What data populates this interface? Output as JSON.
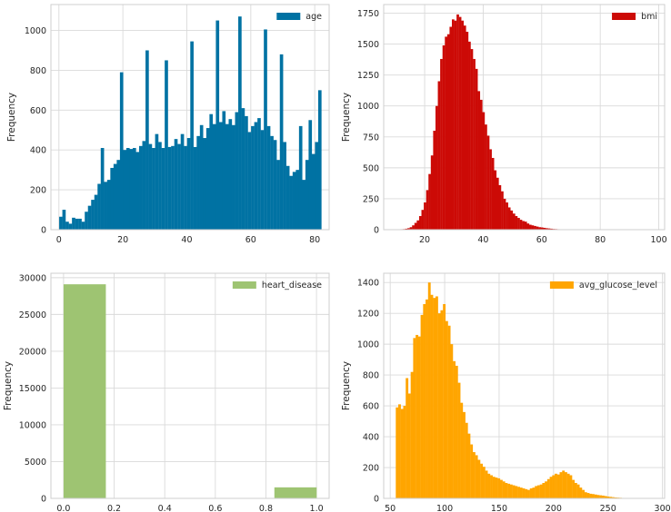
{
  "chart_data": [
    {
      "type": "histogram",
      "legend": "age",
      "legend_position": "upper-right",
      "ylabel": "Frequency",
      "color": "#0072a3",
      "grid": true,
      "xlim": [
        -2.5,
        84.5
      ],
      "ylim": [
        0,
        1130
      ],
      "xticks": [
        0,
        20,
        40,
        60,
        80
      ],
      "yticks": [
        0,
        200,
        400,
        600,
        800,
        1000
      ],
      "bin_start": 0.08,
      "bin_width": 1.0,
      "values": [
        65,
        100,
        40,
        30,
        60,
        55,
        55,
        40,
        90,
        120,
        150,
        175,
        230,
        410,
        240,
        250,
        310,
        330,
        350,
        790,
        400,
        410,
        405,
        410,
        390,
        420,
        445,
        900,
        430,
        410,
        480,
        440,
        410,
        850,
        415,
        420,
        455,
        430,
        480,
        420,
        460,
        945,
        415,
        470,
        525,
        460,
        510,
        580,
        530,
        1050,
        540,
        595,
        530,
        555,
        525,
        590,
        1070,
        610,
        570,
        490,
        520,
        540,
        560,
        500,
        1005,
        520,
        470,
        450,
        350,
        880,
        440,
        320,
        270,
        290,
        300,
        520,
        250,
        350,
        550,
        380,
        440,
        700
      ]
    },
    {
      "type": "histogram",
      "legend": "bmi",
      "legend_position": "upper-right",
      "ylabel": "Frequency",
      "color": "#cc0a06",
      "grid": true,
      "xlim": [
        6,
        102
      ],
      "ylim": [
        0,
        1820
      ],
      "xticks": [
        20,
        40,
        60,
        80,
        100
      ],
      "yticks": [
        0,
        250,
        500,
        750,
        1000,
        1250,
        1500,
        1750
      ],
      "bin_start": 10.1,
      "bin_width": 0.8,
      "values": [
        3,
        2,
        4,
        5,
        8,
        12,
        20,
        35,
        55,
        75,
        110,
        160,
        220,
        320,
        450,
        600,
        800,
        1000,
        1200,
        1380,
        1490,
        1560,
        1580,
        1640,
        1700,
        1690,
        1740,
        1720,
        1690,
        1650,
        1600,
        1520,
        1460,
        1380,
        1300,
        1120,
        1050,
        950,
        850,
        760,
        650,
        580,
        480,
        420,
        360,
        310,
        250,
        220,
        180,
        155,
        130,
        110,
        95,
        80,
        70,
        65,
        50,
        40,
        35,
        30,
        25,
        20,
        18,
        15,
        12,
        10,
        8,
        6,
        5,
        4,
        3,
        3,
        2,
        2,
        1,
        1,
        1,
        1,
        0,
        0,
        1,
        0,
        0,
        0,
        0,
        0,
        0,
        0,
        0,
        0,
        0,
        1,
        0,
        0,
        0,
        0,
        0,
        0,
        0,
        0,
        0,
        0,
        0,
        0,
        0,
        0,
        1
      ]
    },
    {
      "type": "histogram",
      "legend": "heart_disease",
      "legend_position": "upper-right",
      "ylabel": "Frequency",
      "color": "#9ec472",
      "grid": true,
      "xlim": [
        -0.05,
        1.05
      ],
      "ylim": [
        0,
        30600
      ],
      "xticks": [
        0.0,
        0.2,
        0.4,
        0.6,
        0.8,
        1.0
      ],
      "xtick_labels": [
        "0.0",
        "0.2",
        "0.4",
        "0.6",
        "0.8",
        "1.0"
      ],
      "yticks": [
        0,
        5000,
        10000,
        15000,
        20000,
        25000,
        30000
      ],
      "bin_start": 0.0,
      "bin_width": 0.1667,
      "values": [
        29100,
        0,
        0,
        0,
        0,
        1500
      ]
    },
    {
      "type": "histogram",
      "legend": "avg_glucose_level",
      "legend_position": "upper-right",
      "ylabel": "Frequency",
      "color": "#ffa500",
      "grid": true,
      "xlim": [
        44,
        302
      ],
      "ylim": [
        0,
        1460
      ],
      "xticks": [
        50,
        100,
        150,
        200,
        250,
        300
      ],
      "yticks": [
        0,
        200,
        400,
        600,
        800,
        1000,
        1200,
        1400
      ],
      "bin_start": 55.1,
      "bin_width": 2.28,
      "values": [
        590,
        610,
        580,
        600,
        780,
        680,
        820,
        1040,
        1060,
        1050,
        1190,
        1260,
        1290,
        1400,
        1320,
        1300,
        1310,
        1200,
        1220,
        1260,
        1150,
        1120,
        1000,
        890,
        860,
        750,
        620,
        560,
        490,
        420,
        350,
        300,
        280,
        250,
        225,
        205,
        180,
        160,
        150,
        140,
        135,
        130,
        120,
        110,
        100,
        95,
        90,
        85,
        80,
        75,
        70,
        65,
        60,
        55,
        65,
        70,
        80,
        85,
        90,
        100,
        110,
        125,
        140,
        150,
        160,
        155,
        170,
        180,
        170,
        160,
        150,
        120,
        100,
        90,
        70,
        55,
        40,
        35,
        30,
        28,
        25,
        22,
        20,
        18,
        15,
        12,
        10,
        8,
        6,
        5,
        4,
        3,
        2,
        2,
        1,
        1,
        1,
        1,
        1,
        1
      ]
    }
  ]
}
